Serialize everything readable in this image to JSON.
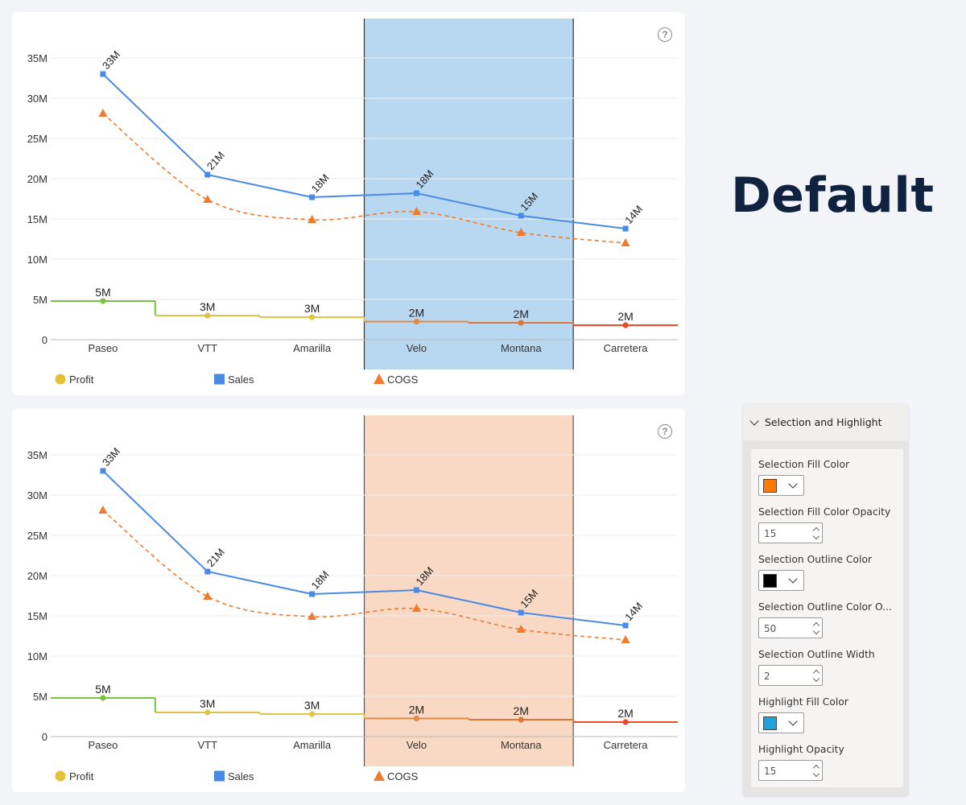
{
  "heading": "Default",
  "chart_data": [
    {
      "type": "line",
      "categories": [
        "Paseo",
        "VTT",
        "Amarilla",
        "Velo",
        "Montana",
        "Carretera"
      ],
      "ylim": [
        0,
        35000000
      ],
      "y_ticks": [
        "0",
        "5M",
        "10M",
        "15M",
        "20M",
        "25M",
        "30M",
        "35M"
      ],
      "grid": true,
      "legend_position": "bottom",
      "series": [
        {
          "name": "Profit",
          "style": "step",
          "values": [
            4800000,
            3000000,
            2800000,
            2250000,
            2100000,
            1800000
          ],
          "labels": [
            "5M",
            "3M",
            "3M",
            "2M",
            "2M",
            "2M"
          ],
          "colors": [
            "#7ac143",
            "#d9c34a",
            "#e2c24a",
            "#de8a4a",
            "#e0743e",
            "#e84a2a"
          ],
          "marker": "circle",
          "legend_color": "#e5c13a"
        },
        {
          "name": "Sales",
          "style": "line",
          "color": "#4a8ae3",
          "values": [
            33000000,
            20500000,
            17700000,
            18200000,
            15400000,
            13800000
          ],
          "labels": [
            "33M",
            "21M",
            "18M",
            "18M",
            "15M",
            "14M"
          ],
          "marker": "square"
        },
        {
          "name": "COGS",
          "style": "dashed-smooth",
          "color": "#f07a2e",
          "values": [
            28100000,
            17400000,
            14900000,
            15900000,
            13300000,
            12000000
          ],
          "marker": "triangle"
        }
      ],
      "selection": {
        "categories": [
          "Velo",
          "Montana"
        ],
        "fill_color": "#b8d8f2",
        "outline_color": "#333333"
      }
    },
    {
      "type": "line",
      "categories": [
        "Paseo",
        "VTT",
        "Amarilla",
        "Velo",
        "Montana",
        "Carretera"
      ],
      "ylim": [
        0,
        35000000
      ],
      "y_ticks": [
        "0",
        "5M",
        "10M",
        "15M",
        "20M",
        "25M",
        "30M",
        "35M"
      ],
      "grid": true,
      "legend_position": "bottom",
      "series": [
        {
          "name": "Profit",
          "style": "step",
          "values": [
            4800000,
            3000000,
            2800000,
            2250000,
            2100000,
            1800000
          ],
          "labels": [
            "5M",
            "3M",
            "3M",
            "2M",
            "2M",
            "2M"
          ],
          "colors": [
            "#7ac143",
            "#d9c34a",
            "#e2c24a",
            "#de8a4a",
            "#e0743e",
            "#e84a2a"
          ],
          "marker": "circle",
          "legend_color": "#e5c13a"
        },
        {
          "name": "Sales",
          "style": "line",
          "color": "#4a8ae3",
          "values": [
            33000000,
            20500000,
            17700000,
            18200000,
            15400000,
            13800000
          ],
          "labels": [
            "33M",
            "21M",
            "18M",
            "18M",
            "15M",
            "14M"
          ],
          "marker": "square"
        },
        {
          "name": "COGS",
          "style": "dashed-smooth",
          "color": "#f07a2e",
          "values": [
            28100000,
            17400000,
            14900000,
            15900000,
            13300000,
            12000000
          ],
          "marker": "triangle"
        }
      ],
      "selection": {
        "categories": [
          "Velo",
          "Montana"
        ],
        "fill_color": "#f9d8c4",
        "outline_color": "#555555"
      }
    }
  ],
  "panel": {
    "title": "Selection and Highlight",
    "fields": [
      {
        "label": "Selection Fill Color",
        "kind": "color",
        "color": "#ff7a00"
      },
      {
        "label": "Selection Fill Color Opacity",
        "kind": "number",
        "value": "15"
      },
      {
        "label": "Selection Outline Color",
        "kind": "color",
        "color": "#000000"
      },
      {
        "label": "Selection Outline Color O...",
        "kind": "number",
        "value": "50"
      },
      {
        "label": "Selection Outline Width",
        "kind": "number",
        "value": "2"
      },
      {
        "label": "Highlight Fill Color",
        "kind": "color",
        "color": "#1ea3e0"
      },
      {
        "label": "Highlight Opacity",
        "kind": "number",
        "value": "15"
      }
    ]
  }
}
